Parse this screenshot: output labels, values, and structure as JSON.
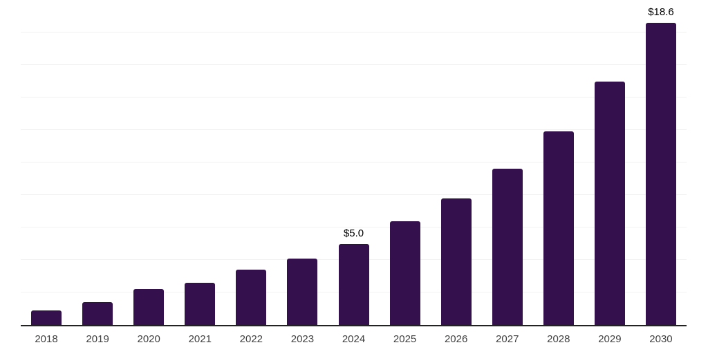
{
  "chart_data": {
    "type": "bar",
    "title": "",
    "xlabel": "",
    "ylabel": "",
    "categories": [
      "2018",
      "2019",
      "2020",
      "2021",
      "2022",
      "2023",
      "2024",
      "2025",
      "2026",
      "2027",
      "2028",
      "2029",
      "2030"
    ],
    "values": [
      0.9,
      1.4,
      2.2,
      2.6,
      3.4,
      4.1,
      5.0,
      6.4,
      7.8,
      9.6,
      11.9,
      15.0,
      18.6
    ],
    "value_labels": [
      "",
      "",
      "",
      "",
      "",
      "",
      "$5.0",
      "",
      "",
      "",
      "",
      "",
      "$18.6"
    ],
    "ylim": [
      0,
      20
    ],
    "gridline_step": 2,
    "grid": "horizontal",
    "legend_position": "none",
    "y_tick_labels_visible": false
  },
  "style": {
    "bar_color": "#34104d",
    "axis_color": "#222222",
    "gridline_color": "#f1f1f1",
    "value_label_color": "#000000",
    "tick_color": "#404040",
    "background": "#ffffff"
  }
}
